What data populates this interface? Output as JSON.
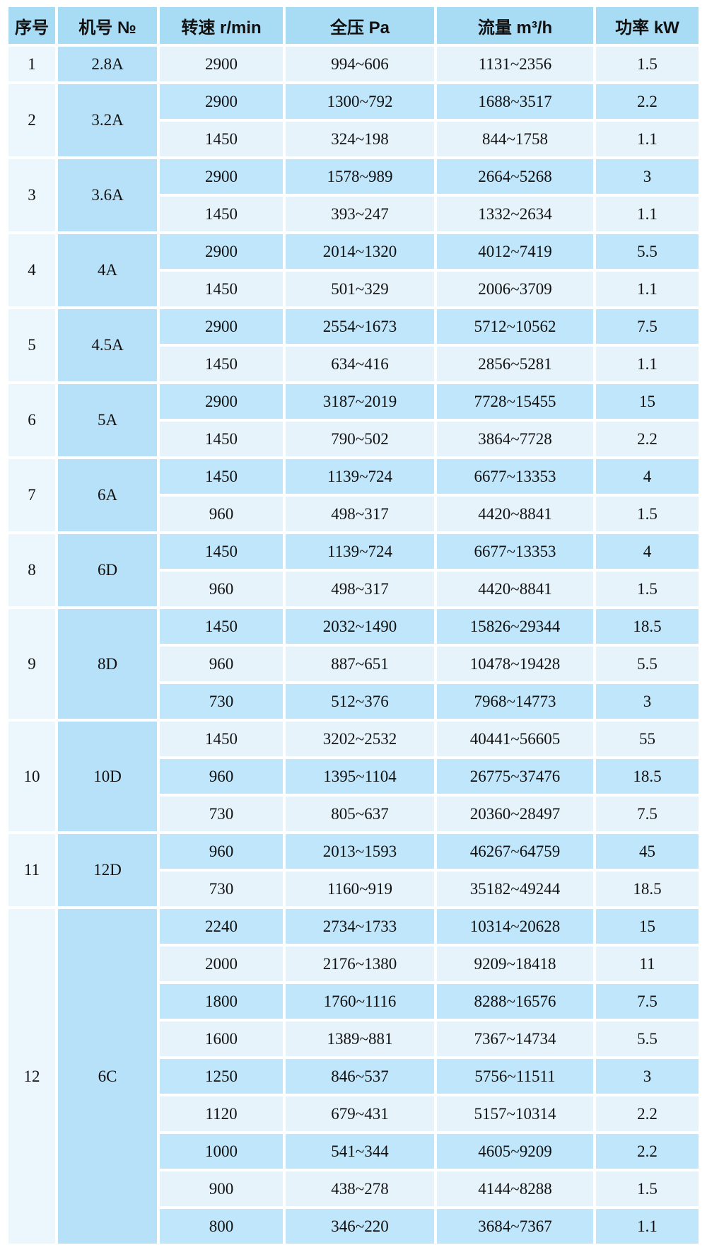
{
  "chart_data": {
    "type": "table",
    "columns": [
      "序号",
      "机号 №",
      "转速 r/min",
      "全压 Pa",
      "流量 m³/h",
      "功率 kW"
    ],
    "groups": [
      {
        "seq": "1",
        "model": "2.8A",
        "rows": [
          [
            "2900",
            "994~606",
            "1131~2356",
            "1.5"
          ]
        ]
      },
      {
        "seq": "2",
        "model": "3.2A",
        "rows": [
          [
            "2900",
            "1300~792",
            "1688~3517",
            "2.2"
          ],
          [
            "1450",
            "324~198",
            "844~1758",
            "1.1"
          ]
        ]
      },
      {
        "seq": "3",
        "model": "3.6A",
        "rows": [
          [
            "2900",
            "1578~989",
            "2664~5268",
            "3"
          ],
          [
            "1450",
            "393~247",
            "1332~2634",
            "1.1"
          ]
        ]
      },
      {
        "seq": "4",
        "model": "4A",
        "rows": [
          [
            "2900",
            "2014~1320",
            "4012~7419",
            "5.5"
          ],
          [
            "1450",
            "501~329",
            "2006~3709",
            "1.1"
          ]
        ]
      },
      {
        "seq": "5",
        "model": "4.5A",
        "rows": [
          [
            "2900",
            "2554~1673",
            "5712~10562",
            "7.5"
          ],
          [
            "1450",
            "634~416",
            "2856~5281",
            "1.1"
          ]
        ]
      },
      {
        "seq": "6",
        "model": "5A",
        "rows": [
          [
            "2900",
            "3187~2019",
            "7728~15455",
            "15"
          ],
          [
            "1450",
            "790~502",
            "3864~7728",
            "2.2"
          ]
        ]
      },
      {
        "seq": "7",
        "model": "6A",
        "rows": [
          [
            "1450",
            "1139~724",
            "6677~13353",
            "4"
          ],
          [
            "960",
            "498~317",
            "4420~8841",
            "1.5"
          ]
        ]
      },
      {
        "seq": "8",
        "model": "6D",
        "rows": [
          [
            "1450",
            "1139~724",
            "6677~13353",
            "4"
          ],
          [
            "960",
            "498~317",
            "4420~8841",
            "1.5"
          ]
        ]
      },
      {
        "seq": "9",
        "model": "8D",
        "rows": [
          [
            "1450",
            "2032~1490",
            "15826~29344",
            "18.5"
          ],
          [
            "960",
            "887~651",
            "10478~19428",
            "5.5"
          ],
          [
            "730",
            "512~376",
            "7968~14773",
            "3"
          ]
        ]
      },
      {
        "seq": "10",
        "model": "10D",
        "rows": [
          [
            "1450",
            "3202~2532",
            "40441~56605",
            "55"
          ],
          [
            "960",
            "1395~1104",
            "26775~37476",
            "18.5"
          ],
          [
            "730",
            "805~637",
            "20360~28497",
            "7.5"
          ]
        ]
      },
      {
        "seq": "11",
        "model": "12D",
        "rows": [
          [
            "960",
            "2013~1593",
            "46267~64759",
            "45"
          ],
          [
            "730",
            "1160~919",
            "35182~49244",
            "18.5"
          ]
        ]
      },
      {
        "seq": "12",
        "model": "6C",
        "rows": [
          [
            "2240",
            "2734~1733",
            "10314~20628",
            "15"
          ],
          [
            "2000",
            "2176~1380",
            "9209~18418",
            "11"
          ],
          [
            "1800",
            "1760~1116",
            "8288~16576",
            "7.5"
          ],
          [
            "1600",
            "1389~881",
            "7367~14734",
            "5.5"
          ],
          [
            "1250",
            "846~537",
            "5756~11511",
            "3"
          ],
          [
            "1120",
            "679~431",
            "5157~10314",
            "2.2"
          ],
          [
            "1000",
            "541~344",
            "4605~9209",
            "2.2"
          ],
          [
            "900",
            "438~278",
            "4144~8288",
            "1.5"
          ],
          [
            "800",
            "346~220",
            "3684~7367",
            "1.1"
          ]
        ]
      }
    ]
  },
  "colors": {
    "header_bg": "#a8dcf5",
    "row_dark_bg": "#bfe6fa",
    "row_light_bg": "#e7f3fb",
    "seq_col_bg": "#ecf7fd",
    "model_col_bg": "#b7e1f8",
    "grid_line": "#ffffff",
    "text": "#111111"
  }
}
